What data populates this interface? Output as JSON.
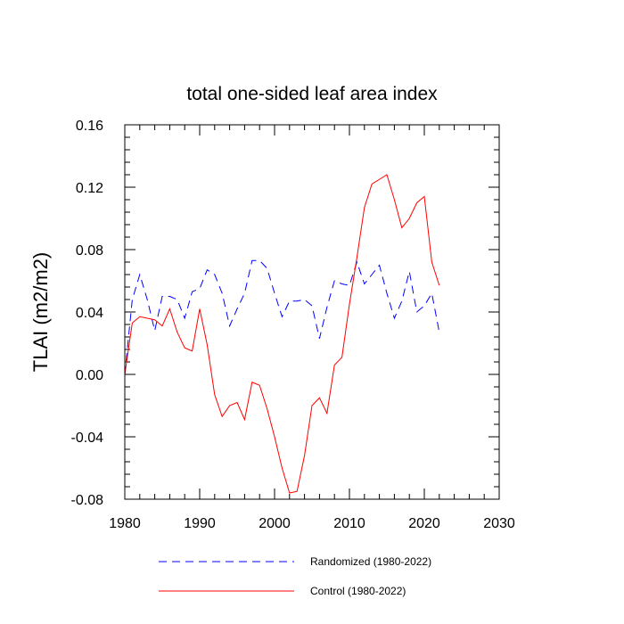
{
  "chart_data": {
    "type": "line",
    "title": "total one-sided leaf area index",
    "xlabel": "",
    "ylabel": "TLAI  (m2/m2)",
    "xlim": [
      1980,
      2030
    ],
    "ylim": [
      -0.08,
      0.16
    ],
    "x_ticks": [
      1980,
      1990,
      2000,
      2010,
      2020,
      2030
    ],
    "y_ticks": [
      -0.08,
      -0.04,
      0.0,
      0.04,
      0.08,
      0.12,
      0.16
    ],
    "y_tick_labels": [
      "-0.08",
      "-0.04",
      "0.00",
      "0.04",
      "0.08",
      "0.12",
      "0.16"
    ],
    "grid": false,
    "legend_position": "bottom",
    "x": [
      1980,
      1981,
      1982,
      1983,
      1984,
      1985,
      1986,
      1987,
      1988,
      1989,
      1990,
      1991,
      1992,
      1993,
      1994,
      1995,
      1996,
      1997,
      1998,
      1999,
      2000,
      2001,
      2002,
      2003,
      2004,
      2005,
      2006,
      2007,
      2008,
      2009,
      2010,
      2011,
      2012,
      2013,
      2014,
      2015,
      2016,
      2017,
      2018,
      2019,
      2020,
      2021,
      2022
    ],
    "series": [
      {
        "name": "Randomized (1980-2022)",
        "color": "#0000ff",
        "style": "dashed",
        "values": [
          0.0,
          0.048,
          0.064,
          0.048,
          0.028,
          0.05,
          0.05,
          0.048,
          0.036,
          0.053,
          0.055,
          0.067,
          0.064,
          0.052,
          0.031,
          0.042,
          0.052,
          0.073,
          0.073,
          0.068,
          0.052,
          0.037,
          0.047,
          0.047,
          0.048,
          0.044,
          0.023,
          0.043,
          0.06,
          0.058,
          0.057,
          0.072,
          0.058,
          0.064,
          0.07,
          0.052,
          0.036,
          0.047,
          0.066,
          0.04,
          0.044,
          0.052,
          0.027
        ]
      },
      {
        "name": "Control (1980-2022)",
        "color": "#ff0000",
        "style": "solid",
        "values": [
          0.0,
          0.033,
          0.037,
          0.036,
          0.035,
          0.031,
          0.042,
          0.027,
          0.017,
          0.015,
          0.042,
          0.019,
          -0.013,
          -0.027,
          -0.02,
          -0.018,
          -0.029,
          -0.005,
          -0.007,
          -0.022,
          -0.04,
          -0.06,
          -0.076,
          -0.075,
          -0.052,
          -0.02,
          -0.015,
          -0.025,
          0.006,
          0.011,
          0.045,
          0.075,
          0.107,
          0.122,
          0.125,
          0.128,
          0.112,
          0.094,
          0.1,
          0.11,
          0.114,
          0.072,
          0.057
        ]
      }
    ]
  }
}
